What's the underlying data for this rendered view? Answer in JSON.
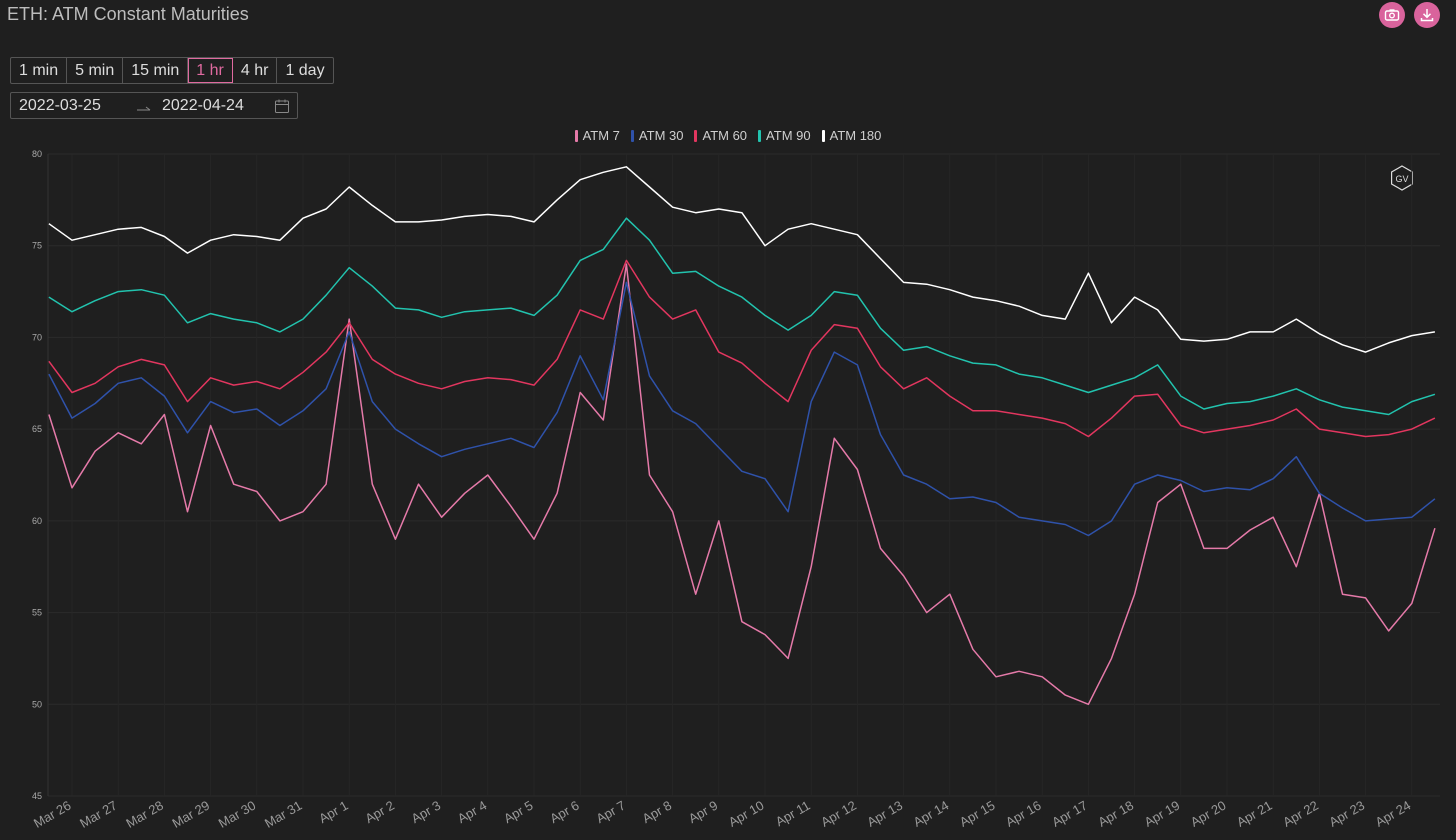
{
  "header": {
    "title": "ETH: ATM Constant Maturities"
  },
  "toolbar": {
    "intervals": [
      "1 min",
      "5 min",
      "15 min",
      "1 hr",
      "4 hr",
      "1 day"
    ],
    "active_interval": 3,
    "date_range": {
      "start": "2022-03-25",
      "end": "2022-04-24"
    }
  },
  "watermark": "GV",
  "chart_data": {
    "type": "line",
    "categories": [
      null,
      "Mar 26",
      null,
      "Mar 27",
      null,
      "Mar 28",
      null,
      "Mar 29",
      null,
      "Mar 30",
      null,
      "Mar 31",
      null,
      "Apr 1",
      null,
      "Apr 2",
      null,
      "Apr 3",
      null,
      "Apr 4",
      null,
      "Apr 5",
      null,
      "Apr 6",
      null,
      "Apr 7",
      null,
      "Apr 8",
      null,
      "Apr 9",
      null,
      "Apr 10",
      null,
      "Apr 11",
      null,
      "Apr 12",
      null,
      "Apr 13",
      null,
      "Apr 14",
      null,
      "Apr 15",
      null,
      "Apr 16",
      null,
      "Apr 17",
      null,
      "Apr 18",
      null,
      "Apr 19",
      null,
      "Apr 20",
      null,
      "Apr 21",
      null,
      "Apr 22",
      null,
      "Apr 23",
      null,
      "Apr 24",
      null
    ],
    "series": [
      {
        "name": "ATM 7",
        "color": "#e57aa9",
        "values": [
          65.8,
          61.8,
          63.8,
          64.8,
          64.2,
          65.8,
          60.5,
          65.2,
          62.0,
          61.6,
          60.0,
          60.5,
          62.0,
          71.0,
          62.0,
          59.0,
          62.0,
          60.2,
          61.5,
          62.5,
          60.8,
          59.0,
          61.5,
          67.0,
          65.5,
          74.0,
          62.5,
          60.5,
          56.0,
          60.0,
          54.5,
          53.8,
          52.5,
          57.5,
          64.5,
          62.8,
          58.5,
          57.0,
          55.0,
          56.0,
          53.0,
          51.5,
          51.8,
          51.5,
          50.5,
          50.0,
          52.5,
          56.0,
          61.0,
          62.0,
          58.5,
          58.5,
          59.5,
          60.2,
          57.5,
          61.5,
          56.0,
          55.8,
          54.0,
          55.5,
          59.6
        ]
      },
      {
        "name": "ATM 30",
        "color": "#2f52aa",
        "values": [
          68.0,
          65.6,
          66.4,
          67.5,
          67.8,
          66.8,
          64.8,
          66.5,
          65.9,
          66.1,
          65.2,
          66.0,
          67.2,
          70.3,
          66.5,
          65.0,
          64.2,
          63.5,
          63.9,
          64.2,
          64.5,
          64.0,
          65.9,
          69.0,
          66.6,
          73.0,
          67.9,
          66.0,
          65.3,
          64.0,
          62.7,
          62.3,
          60.5,
          66.5,
          69.2,
          68.5,
          64.7,
          62.5,
          62.0,
          61.2,
          61.3,
          61.0,
          60.2,
          60.0,
          59.8,
          59.2,
          60.0,
          62.0,
          62.5,
          62.2,
          61.6,
          61.8,
          61.7,
          62.3,
          63.5,
          61.5,
          60.7,
          60.0,
          60.1,
          60.2,
          61.2
        ]
      },
      {
        "name": "ATM 60",
        "color": "#e2365f",
        "values": [
          68.7,
          67.0,
          67.5,
          68.4,
          68.8,
          68.5,
          66.5,
          67.8,
          67.4,
          67.6,
          67.2,
          68.1,
          69.2,
          70.8,
          68.8,
          68.0,
          67.5,
          67.2,
          67.6,
          67.8,
          67.7,
          67.4,
          68.8,
          71.5,
          71.0,
          74.2,
          72.2,
          71.0,
          71.5,
          69.2,
          68.6,
          67.5,
          66.5,
          69.3,
          70.7,
          70.5,
          68.4,
          67.2,
          67.8,
          66.8,
          66.0,
          66.0,
          65.8,
          65.6,
          65.3,
          64.6,
          65.6,
          66.8,
          66.9,
          65.2,
          64.8,
          65.0,
          65.2,
          65.5,
          66.1,
          65.0,
          64.8,
          64.6,
          64.7,
          65.0,
          65.6
        ]
      },
      {
        "name": "ATM 90",
        "color": "#22c3ae",
        "values": [
          72.2,
          71.4,
          72.0,
          72.5,
          72.6,
          72.3,
          70.8,
          71.3,
          71.0,
          70.8,
          70.3,
          71.0,
          72.3,
          73.8,
          72.8,
          71.6,
          71.5,
          71.1,
          71.4,
          71.5,
          71.6,
          71.2,
          72.3,
          74.2,
          74.8,
          76.5,
          75.3,
          73.5,
          73.6,
          72.8,
          72.2,
          71.2,
          70.4,
          71.2,
          72.5,
          72.3,
          70.5,
          69.3,
          69.5,
          69.0,
          68.6,
          68.5,
          68.0,
          67.8,
          67.4,
          67.0,
          67.4,
          67.8,
          68.5,
          66.8,
          66.1,
          66.4,
          66.5,
          66.8,
          67.2,
          66.6,
          66.2,
          66.0,
          65.8,
          66.5,
          66.9
        ]
      },
      {
        "name": "ATM 180",
        "color": "#ffffff",
        "values": [
          76.2,
          75.3,
          75.6,
          75.9,
          76.0,
          75.5,
          74.6,
          75.3,
          75.6,
          75.5,
          75.3,
          76.5,
          77.0,
          78.2,
          77.2,
          76.3,
          76.3,
          76.4,
          76.6,
          76.7,
          76.6,
          76.3,
          77.5,
          78.6,
          79.0,
          79.3,
          78.2,
          77.1,
          76.8,
          77.0,
          76.8,
          75.0,
          75.9,
          76.2,
          75.9,
          75.6,
          74.3,
          73.0,
          72.9,
          72.6,
          72.2,
          72.0,
          71.7,
          71.2,
          71.0,
          73.5,
          70.8,
          72.2,
          71.5,
          69.9,
          69.8,
          69.9,
          70.3,
          70.3,
          71.0,
          70.2,
          69.6,
          69.2,
          69.7,
          70.1,
          70.3
        ]
      }
    ],
    "ylim": [
      45,
      80
    ],
    "yticks": [
      45,
      50,
      55,
      60,
      65,
      70,
      75,
      80
    ],
    "grid": true,
    "legend": "top"
  }
}
